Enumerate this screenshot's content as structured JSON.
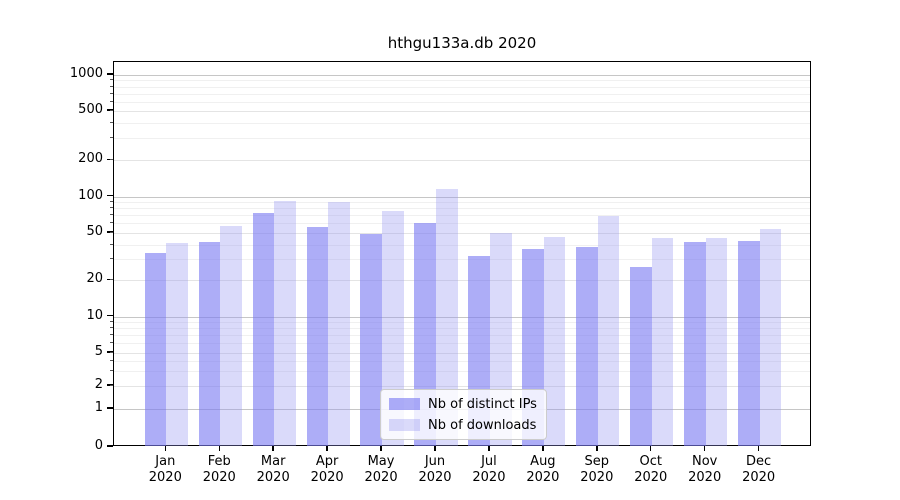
{
  "chart_data": {
    "type": "bar",
    "title": "hthgu133a.db 2020",
    "categories": [
      "Jan",
      "Feb",
      "Mar",
      "Apr",
      "May",
      "Jun",
      "Jul",
      "Aug",
      "Sep",
      "Oct",
      "Nov",
      "Dec"
    ],
    "category_year": "2020",
    "series": [
      {
        "name": "Nb of distinct IPs",
        "color": "rgba(122,122,242,0.62)",
        "values": [
          34,
          42,
          73,
          56,
          49,
          61,
          32,
          37,
          38,
          26,
          42,
          43
        ]
      },
      {
        "name": "Nb of downloads",
        "color": "rgba(150,150,240,0.35)",
        "values": [
          41,
          57,
          92,
          90,
          76,
          115,
          50,
          46,
          69,
          45,
          45,
          54
        ]
      }
    ],
    "yscale": "symlog",
    "yticks": [
      0,
      1,
      2,
      5,
      10,
      20,
      50,
      100,
      200,
      500,
      1000
    ],
    "ytick_labels": [
      "0",
      "1",
      "2",
      "5",
      "10",
      "20",
      "50",
      "100",
      "200",
      "500",
      "1000"
    ],
    "ylim": [
      0,
      1400
    ],
    "grid": true,
    "legend_position": "lower center"
  },
  "colors": {
    "grid_decade": "#c6c6c6",
    "grid_labeled": "#e4e4e4",
    "grid_minor": "#f0f0f0",
    "spine": "#000000",
    "text": "#000000",
    "legend_border": "#cccccc",
    "background": "#ffffff"
  }
}
